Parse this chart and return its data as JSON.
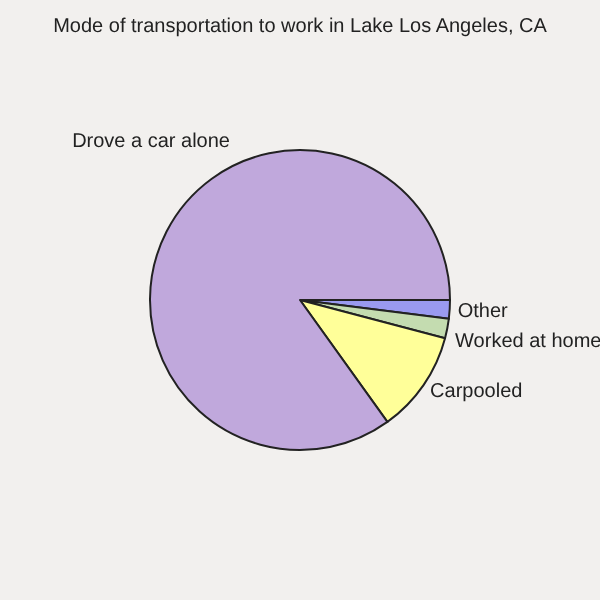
{
  "chart_data": {
    "type": "pie",
    "title": "Mode of transportation to work in Lake Los Angeles, CA",
    "categories": [
      "Other",
      "Worked at home",
      "Carpooled",
      "Drove a car alone"
    ],
    "values": [
      2,
      2.1,
      11,
      84.9
    ],
    "colors": [
      "#9a9af0",
      "#c4dcb0",
      "#ffff99",
      "#c0a8dc"
    ]
  }
}
